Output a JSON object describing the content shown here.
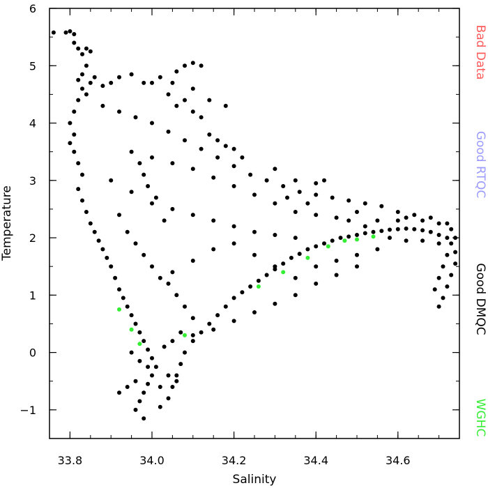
{
  "chart_data": {
    "type": "scatter",
    "xlabel": "Salinity",
    "ylabel": "Temperature",
    "xlim": [
      33.75,
      34.75
    ],
    "ylim": [
      -1.5,
      6
    ],
    "xticks": [
      33.8,
      34.0,
      34.2,
      34.4,
      34.6
    ],
    "xtick_labels": [
      "33.8",
      "34.0",
      "34.2",
      "34.4",
      "34.6"
    ],
    "yticks": [
      -1,
      0,
      1,
      2,
      3,
      4,
      5,
      6
    ],
    "ytick_labels": [
      "−1",
      "0",
      "1",
      "2",
      "3",
      "4",
      "5",
      "6"
    ],
    "legend": [
      {
        "label": "Bad Data",
        "color": "#ff5a5a"
      },
      {
        "label": "Good RTQC",
        "color": "#9a9aff"
      },
      {
        "label": "Good DMQC",
        "color": "#000000"
      },
      {
        "label": "WGHC",
        "color": "#33ee33"
      }
    ],
    "legend_placement": "right",
    "series": [
      {
        "name": "Good DMQC",
        "color": "#000000",
        "points": [
          [
            33.76,
            5.58
          ],
          [
            33.79,
            5.58
          ],
          [
            33.8,
            5.6
          ],
          [
            33.81,
            5.55
          ],
          [
            33.81,
            5.4
          ],
          [
            33.82,
            5.3
          ],
          [
            33.83,
            5.2
          ],
          [
            33.84,
            5.3
          ],
          [
            33.85,
            5.25
          ],
          [
            33.84,
            5.0
          ],
          [
            33.83,
            4.85
          ],
          [
            33.82,
            4.75
          ],
          [
            33.83,
            4.6
          ],
          [
            33.84,
            4.5
          ],
          [
            33.85,
            4.7
          ],
          [
            33.86,
            4.8
          ],
          [
            33.82,
            4.4
          ],
          [
            33.81,
            4.2
          ],
          [
            33.8,
            4.0
          ],
          [
            33.81,
            3.8
          ],
          [
            33.8,
            3.65
          ],
          [
            33.81,
            3.5
          ],
          [
            33.82,
            3.3
          ],
          [
            33.83,
            3.1
          ],
          [
            33.82,
            2.85
          ],
          [
            33.83,
            2.65
          ],
          [
            33.84,
            2.45
          ],
          [
            33.85,
            2.25
          ],
          [
            33.86,
            2.1
          ],
          [
            33.87,
            1.95
          ],
          [
            33.88,
            1.8
          ],
          [
            33.89,
            1.65
          ],
          [
            33.9,
            1.5
          ],
          [
            33.91,
            1.3
          ],
          [
            33.92,
            1.1
          ],
          [
            33.93,
            0.95
          ],
          [
            33.94,
            0.8
          ],
          [
            33.95,
            0.65
          ],
          [
            33.96,
            0.5
          ],
          [
            33.97,
            0.35
          ],
          [
            33.98,
            0.2
          ],
          [
            33.99,
            0.05
          ],
          [
            34.0,
            -0.1
          ],
          [
            34.01,
            -0.25
          ],
          [
            34.0,
            -0.4
          ],
          [
            33.99,
            -0.55
          ],
          [
            33.98,
            -0.7
          ],
          [
            33.97,
            -0.85
          ],
          [
            33.96,
            -1.0
          ],
          [
            33.98,
            -1.15
          ],
          [
            34.02,
            -0.95
          ],
          [
            34.04,
            -0.8
          ],
          [
            34.05,
            -0.6
          ],
          [
            34.06,
            -0.4
          ],
          [
            34.07,
            -0.2
          ],
          [
            34.08,
            0.0
          ],
          [
            34.1,
            0.2
          ],
          [
            34.12,
            0.35
          ],
          [
            34.14,
            0.5
          ],
          [
            34.16,
            0.65
          ],
          [
            34.18,
            0.8
          ],
          [
            34.2,
            0.95
          ],
          [
            34.22,
            1.05
          ],
          [
            34.24,
            1.15
          ],
          [
            34.26,
            1.25
          ],
          [
            34.28,
            1.35
          ],
          [
            34.3,
            1.45
          ],
          [
            34.32,
            1.55
          ],
          [
            34.34,
            1.65
          ],
          [
            34.36,
            1.72
          ],
          [
            34.38,
            1.8
          ],
          [
            34.4,
            1.85
          ],
          [
            34.42,
            1.9
          ],
          [
            34.44,
            1.95
          ],
          [
            34.46,
            2.0
          ],
          [
            34.48,
            2.02
          ],
          [
            34.5,
            2.05
          ],
          [
            34.52,
            2.08
          ],
          [
            34.54,
            2.1
          ],
          [
            34.56,
            2.12
          ],
          [
            34.58,
            2.14
          ],
          [
            34.6,
            2.15
          ],
          [
            34.62,
            2.16
          ],
          [
            34.64,
            2.15
          ],
          [
            34.66,
            2.13
          ],
          [
            34.68,
            2.1
          ],
          [
            34.7,
            2.05
          ],
          [
            34.72,
            2.0
          ],
          [
            34.73,
            1.9
          ],
          [
            34.74,
            1.75
          ],
          [
            34.74,
            1.55
          ],
          [
            34.73,
            1.35
          ],
          [
            34.72,
            1.15
          ],
          [
            34.71,
            0.95
          ],
          [
            34.7,
            0.8
          ],
          [
            34.74,
            2.0
          ],
          [
            34.72,
            2.25
          ],
          [
            34.68,
            2.35
          ],
          [
            34.64,
            2.4
          ],
          [
            34.6,
            2.45
          ],
          [
            34.56,
            2.55
          ],
          [
            34.52,
            2.6
          ],
          [
            34.48,
            2.65
          ],
          [
            34.44,
            2.7
          ],
          [
            34.4,
            2.75
          ],
          [
            34.36,
            2.8
          ],
          [
            34.32,
            2.9
          ],
          [
            34.28,
            3.0
          ],
          [
            34.24,
            3.1
          ],
          [
            34.2,
            3.25
          ],
          [
            34.16,
            3.4
          ],
          [
            34.12,
            3.55
          ],
          [
            34.08,
            3.7
          ],
          [
            34.04,
            3.85
          ],
          [
            34.0,
            4.0
          ],
          [
            33.96,
            4.1
          ],
          [
            33.92,
            4.2
          ],
          [
            33.88,
            4.3
          ],
          [
            33.9,
            3.0
          ],
          [
            33.95,
            2.8
          ],
          [
            34.0,
            2.6
          ],
          [
            34.05,
            2.5
          ],
          [
            34.1,
            2.4
          ],
          [
            34.15,
            2.3
          ],
          [
            34.2,
            2.2
          ],
          [
            34.25,
            2.1
          ],
          [
            34.3,
            2.05
          ],
          [
            34.35,
            2.0
          ],
          [
            34.0,
            3.4
          ],
          [
            34.05,
            3.3
          ],
          [
            34.1,
            3.2
          ],
          [
            34.15,
            3.05
          ],
          [
            34.2,
            2.9
          ],
          [
            34.25,
            2.75
          ],
          [
            34.3,
            2.6
          ],
          [
            34.35,
            2.45
          ],
          [
            34.4,
            2.4
          ],
          [
            34.45,
            2.35
          ],
          [
            34.0,
            4.7
          ],
          [
            34.02,
            4.8
          ],
          [
            34.05,
            4.7
          ],
          [
            34.08,
            5.0
          ],
          [
            34.1,
            5.05
          ],
          [
            34.12,
            5.0
          ],
          [
            34.06,
            4.9
          ],
          [
            34.04,
            4.5
          ],
          [
            34.06,
            4.3
          ],
          [
            34.08,
            4.4
          ],
          [
            34.1,
            4.2
          ],
          [
            34.12,
            4.1
          ],
          [
            33.95,
            3.5
          ],
          [
            33.97,
            3.3
          ],
          [
            33.98,
            3.1
          ],
          [
            33.99,
            2.9
          ],
          [
            34.01,
            2.7
          ],
          [
            34.03,
            2.3
          ],
          [
            33.92,
            2.4
          ],
          [
            33.94,
            2.1
          ],
          [
            33.96,
            1.9
          ],
          [
            33.98,
            1.7
          ],
          [
            34.0,
            1.5
          ],
          [
            34.02,
            1.3
          ],
          [
            34.04,
            1.2
          ],
          [
            34.06,
            1.0
          ],
          [
            34.08,
            0.8
          ],
          [
            34.1,
            0.6
          ],
          [
            34.05,
            1.4
          ],
          [
            34.1,
            1.6
          ],
          [
            34.15,
            1.8
          ],
          [
            34.2,
            1.9
          ],
          [
            34.25,
            1.7
          ],
          [
            34.3,
            1.5
          ],
          [
            34.35,
            1.3
          ],
          [
            34.4,
            1.5
          ],
          [
            34.45,
            1.6
          ],
          [
            34.5,
            1.7
          ],
          [
            34.55,
            1.8
          ],
          [
            34.5,
            1.5
          ],
          [
            34.45,
            1.35
          ],
          [
            34.4,
            1.2
          ],
          [
            34.35,
            1.0
          ],
          [
            34.3,
            0.85
          ],
          [
            34.25,
            0.7
          ],
          [
            34.2,
            0.55
          ],
          [
            34.15,
            0.4
          ],
          [
            34.1,
            0.3
          ],
          [
            33.92,
            -0.7
          ],
          [
            33.94,
            -0.6
          ],
          [
            33.96,
            -0.5
          ],
          [
            34.02,
            -0.6
          ],
          [
            34.04,
            -0.4
          ],
          [
            34.06,
            -0.5
          ],
          [
            33.99,
            -0.25
          ],
          [
            33.97,
            -0.15
          ],
          [
            33.95,
            0.0
          ],
          [
            34.03,
            0.1
          ],
          [
            34.05,
            0.2
          ],
          [
            34.07,
            0.35
          ],
          [
            34.3,
            3.2
          ],
          [
            34.35,
            3.0
          ],
          [
            34.4,
            2.95
          ],
          [
            34.42,
            3.0
          ],
          [
            34.38,
            2.6
          ],
          [
            34.33,
            2.7
          ],
          [
            34.18,
            3.6
          ],
          [
            34.2,
            3.55
          ],
          [
            34.22,
            3.4
          ],
          [
            34.14,
            3.8
          ],
          [
            34.16,
            3.7
          ],
          [
            34.18,
            4.3
          ],
          [
            34.14,
            4.4
          ],
          [
            34.1,
            4.6
          ],
          [
            33.88,
            4.65
          ],
          [
            33.9,
            4.7
          ],
          [
            33.92,
            4.8
          ],
          [
            33.95,
            4.85
          ],
          [
            33.98,
            4.7
          ],
          [
            34.6,
            2.3
          ],
          [
            34.62,
            2.35
          ],
          [
            34.66,
            2.3
          ],
          [
            34.7,
            2.25
          ],
          [
            34.73,
            2.15
          ],
          [
            34.55,
            2.3
          ],
          [
            34.5,
            2.45
          ],
          [
            34.48,
            2.3
          ],
          [
            34.52,
            2.2
          ],
          [
            34.58,
            2.0
          ],
          [
            34.62,
            1.95
          ],
          [
            34.66,
            1.95
          ],
          [
            34.7,
            1.9
          ],
          [
            34.72,
            1.7
          ],
          [
            34.71,
            1.5
          ],
          [
            34.7,
            1.3
          ],
          [
            34.69,
            1.1
          ]
        ]
      },
      {
        "name": "WGHC",
        "color": "#33ee33",
        "points": [
          [
            33.92,
            0.75
          ],
          [
            33.95,
            0.4
          ],
          [
            33.97,
            0.15
          ],
          [
            34.08,
            0.3
          ],
          [
            34.26,
            1.15
          ],
          [
            34.32,
            1.4
          ],
          [
            34.38,
            1.65
          ],
          [
            34.43,
            1.85
          ],
          [
            34.47,
            1.95
          ],
          [
            34.5,
            1.97
          ],
          [
            34.54,
            2.02
          ]
        ]
      }
    ]
  }
}
